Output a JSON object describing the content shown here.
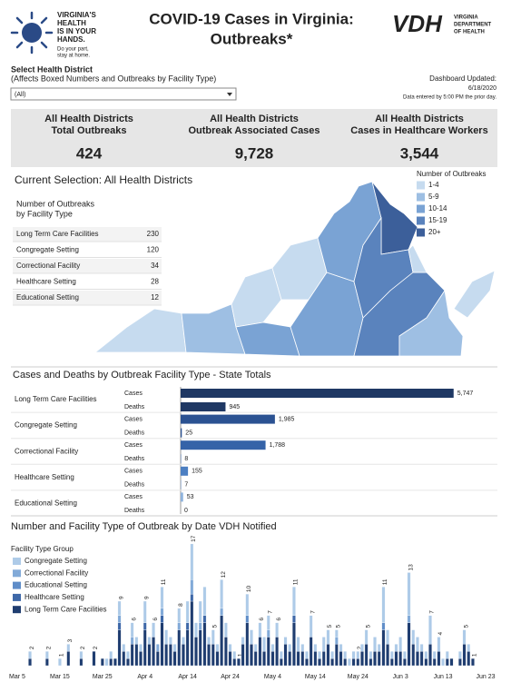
{
  "header": {
    "logo_lines": [
      "VIRGINIA'S",
      "HEALTH",
      "IS IN YOUR",
      "HANDS."
    ],
    "logo_tagline": [
      "Do your part,",
      "stay at home."
    ],
    "title": [
      "COVID-19 Cases in Virginia:",
      "Outbreaks*"
    ],
    "vdh_mark": "VDH",
    "vdh_lines": [
      "VIRGINIA",
      "DEPARTMENT",
      "OF HEALTH"
    ]
  },
  "filter": {
    "label": "Select Health District",
    "hint": "(Affects Boxed Numbers and Outbreaks by Facility Type)",
    "selected": "(All)"
  },
  "updated": {
    "label": "Dashboard Updated:",
    "date": "6/18/2020",
    "note": "Data entered by 5:00 PM the prior day."
  },
  "kpis": [
    {
      "title": [
        "All Health Districts",
        "Total Outbreaks"
      ],
      "value": "424"
    },
    {
      "title": [
        "All Health Districts",
        "Outbreak Associated Cases"
      ],
      "value": "9,728"
    },
    {
      "title": [
        "All Health Districts",
        "Cases in Healthcare Workers"
      ],
      "value": "3,544"
    }
  ],
  "selection": "Current Selection: All Health Districts",
  "outbreak_table": {
    "title": "Number of Outbreaks",
    "subtitle": "by Facility Type",
    "rows": [
      {
        "facility": "Long Term Care Facilities",
        "count": 230
      },
      {
        "facility": "Congregate Setting",
        "count": 120
      },
      {
        "facility": "Correctional Facility",
        "count": 34
      },
      {
        "facility": "Healthcare Setting",
        "count": 28
      },
      {
        "facility": "Educational Setting",
        "count": 12
      }
    ]
  },
  "map_legend": {
    "title": "Number of Outbreaks",
    "items": [
      {
        "label": "1-4",
        "color": "#c6dbef"
      },
      {
        "label": "5-9",
        "color": "#9ebfe3"
      },
      {
        "label": "10-14",
        "color": "#7aa3d4"
      },
      {
        "label": "15-19",
        "color": "#5a83bd"
      },
      {
        "label": "20+",
        "color": "#3c5f9a"
      }
    ]
  },
  "chart_data": [
    {
      "type": "hbar",
      "title": "Cases and Deaths by Outbreak Facility Type - State Totals",
      "categories": [
        "Long Term Care Facilities",
        "Congregate Setting",
        "Correctional Facility",
        "Healthcare Setting",
        "Educational Setting"
      ],
      "colors": [
        "#1f3864",
        "#2b5292",
        "#3563a8",
        "#4c7fc2",
        "#8fb3dd"
      ],
      "series": [
        {
          "name": "Cases",
          "values": [
            5747,
            1985,
            1788,
            155,
            53
          ],
          "value_labels": [
            "5,747",
            "1,985",
            "1,788",
            "155",
            "53"
          ]
        },
        {
          "name": "Deaths",
          "values": [
            945,
            25,
            8,
            7,
            0
          ]
        }
      ],
      "xlim": [
        0,
        6000
      ]
    },
    {
      "type": "stacked_bar",
      "title": "Number and Facility Type of Outbreak by Date VDH Notified",
      "legend_title": "Facility Type Group",
      "categories": [
        "Mar 5",
        null,
        null,
        null,
        null,
        null,
        null,
        null,
        null,
        null,
        "Mar 15",
        null,
        null,
        null,
        null,
        null,
        null,
        null,
        null,
        null,
        "Mar 25",
        null,
        null,
        null,
        null,
        null,
        null,
        null,
        null,
        null,
        "Apr 4",
        null,
        null,
        null,
        null,
        null,
        null,
        null,
        null,
        null,
        "Apr 14",
        null,
        null,
        null,
        null,
        null,
        null,
        null,
        null,
        null,
        "Apr 24",
        null,
        null,
        null,
        null,
        null,
        null,
        null,
        null,
        null,
        "May 4",
        null,
        null,
        null,
        null,
        null,
        null,
        null,
        null,
        null,
        "May 14",
        null,
        null,
        null,
        null,
        null,
        null,
        null,
        null,
        null,
        "May 24",
        null,
        null,
        null,
        null,
        null,
        null,
        null,
        null,
        null,
        "Jun 3",
        null,
        null,
        null,
        null,
        null,
        null,
        null,
        null,
        null,
        "Jun 13",
        null,
        null,
        null,
        null,
        null,
        null,
        null,
        null,
        null,
        "Jun 23"
      ],
      "series": [
        {
          "name": "Congregate Setting",
          "color": "#aecbe8",
          "values": [
            0,
            0,
            0,
            1,
            0,
            0,
            0,
            1,
            0,
            0,
            1,
            0,
            1,
            0,
            0,
            1,
            0,
            0,
            0,
            0,
            0,
            1,
            1,
            0,
            2,
            1,
            1,
            2,
            1,
            1,
            3,
            1,
            2,
            0,
            3,
            2,
            1,
            1,
            2,
            1,
            3,
            5,
            2,
            3,
            4,
            1,
            2,
            1,
            4,
            2,
            1,
            1,
            0,
            1,
            3,
            2,
            1,
            2,
            2,
            2,
            1,
            2,
            1,
            1,
            1,
            4,
            2,
            1,
            1,
            3,
            1,
            1,
            2,
            2,
            1,
            1,
            1,
            1,
            1,
            1,
            1,
            1,
            2,
            1,
            2,
            1,
            5,
            2,
            1,
            1,
            2,
            1,
            6,
            2,
            2,
            1,
            1,
            4,
            1,
            2,
            1,
            1,
            0,
            0,
            1,
            2,
            1,
            0,
            0,
            0,
            0
          ]
        },
        {
          "name": "Correctional Facility",
          "color": "#82aad8",
          "values": [
            0,
            0,
            0,
            0,
            0,
            0,
            0,
            0,
            0,
            0,
            0,
            0,
            0,
            0,
            0,
            0,
            0,
            0,
            0,
            0,
            0,
            0,
            0,
            0,
            1,
            0,
            0,
            1,
            0,
            0,
            0,
            0,
            0,
            1,
            1,
            0,
            0,
            0,
            1,
            0,
            0,
            2,
            0,
            1,
            0,
            0,
            0,
            0,
            1,
            0,
            0,
            0,
            0,
            0,
            0,
            0,
            0,
            0,
            0,
            1,
            0,
            0,
            0,
            0,
            0,
            0,
            0,
            0,
            0,
            0,
            0,
            0,
            0,
            0,
            0,
            1,
            0,
            0,
            0,
            0,
            0,
            0,
            0,
            0,
            0,
            0,
            0,
            0,
            0,
            0,
            0,
            0,
            1,
            0,
            0,
            0,
            0,
            0,
            0,
            0,
            0,
            0,
            0,
            0,
            0,
            0,
            0,
            0,
            0,
            0,
            0
          ]
        },
        {
          "name": "Educational Setting",
          "color": "#5f8dc8",
          "values": [
            0,
            0,
            0,
            0,
            0,
            0,
            0,
            0,
            0,
            0,
            0,
            0,
            0,
            0,
            0,
            0,
            0,
            0,
            0,
            0,
            0,
            0,
            0,
            0,
            0,
            0,
            0,
            0,
            0,
            0,
            0,
            0,
            0,
            0,
            0,
            0,
            0,
            0,
            0,
            0,
            0,
            0,
            0,
            0,
            0,
            0,
            0,
            0,
            0,
            0,
            0,
            0,
            0,
            0,
            1,
            0,
            0,
            0,
            0,
            0,
            0,
            0,
            0,
            0,
            0,
            0,
            0,
            0,
            0,
            0,
            0,
            0,
            0,
            0,
            0,
            0,
            0,
            0,
            0,
            0,
            0,
            0,
            0,
            0,
            0,
            0,
            1,
            0,
            0,
            0,
            0,
            0,
            0,
            0,
            0,
            0,
            0,
            0,
            0,
            0,
            0,
            0,
            0,
            0,
            0,
            0,
            0,
            0,
            0,
            0,
            0
          ]
        },
        {
          "name": "Healthcare Setting",
          "color": "#3e68a8",
          "values": [
            0,
            0,
            0,
            0,
            0,
            0,
            0,
            0,
            0,
            0,
            0,
            0,
            0,
            0,
            0,
            0,
            0,
            0,
            0,
            0,
            0,
            0,
            0,
            0,
            1,
            0,
            0,
            0,
            0,
            0,
            1,
            0,
            0,
            0,
            1,
            0,
            0,
            0,
            0,
            0,
            1,
            1,
            0,
            0,
            1,
            0,
            0,
            0,
            0,
            0,
            0,
            0,
            0,
            0,
            0,
            0,
            0,
            0,
            0,
            0,
            0,
            0,
            0,
            0,
            0,
            1,
            0,
            0,
            0,
            0,
            0,
            0,
            0,
            0,
            0,
            0,
            0,
            0,
            0,
            0,
            0,
            0,
            0,
            0,
            0,
            0,
            0,
            0,
            0,
            0,
            0,
            0,
            0,
            0,
            0,
            0,
            0,
            0,
            0,
            0,
            0,
            0,
            0,
            0,
            0,
            0,
            0,
            0,
            0,
            0,
            0
          ]
        },
        {
          "name": "Long Term Care Facilities",
          "color": "#1f3d70",
          "values": [
            0,
            0,
            0,
            1,
            0,
            0,
            0,
            1,
            0,
            0,
            0,
            0,
            2,
            0,
            0,
            1,
            0,
            0,
            2,
            0,
            1,
            0,
            1,
            1,
            5,
            2,
            1,
            3,
            3,
            2,
            5,
            3,
            4,
            2,
            6,
            3,
            3,
            2,
            5,
            3,
            5,
            9,
            4,
            5,
            6,
            3,
            3,
            2,
            7,
            4,
            2,
            1,
            1,
            3,
            6,
            3,
            2,
            4,
            2,
            4,
            2,
            4,
            1,
            3,
            2,
            6,
            2,
            2,
            1,
            4,
            2,
            1,
            2,
            3,
            1,
            3,
            2,
            1,
            0,
            1,
            1,
            2,
            3,
            1,
            2,
            2,
            5,
            3,
            1,
            2,
            2,
            1,
            6,
            3,
            2,
            2,
            1,
            3,
            1,
            2,
            0,
            1,
            1,
            0,
            1,
            3,
            2,
            1,
            0,
            0,
            0
          ]
        }
      ],
      "totals": [
        null,
        null,
        null,
        2,
        null,
        null,
        null,
        2,
        null,
        null,
        1,
        null,
        3,
        null,
        null,
        2,
        null,
        null,
        2,
        null,
        null,
        null,
        null,
        null,
        9,
        null,
        null,
        6,
        null,
        null,
        9,
        null,
        6,
        null,
        11,
        null,
        null,
        null,
        8,
        null,
        null,
        17,
        null,
        null,
        null,
        null,
        5,
        null,
        12,
        null,
        null,
        null,
        1,
        null,
        10,
        null,
        null,
        6,
        null,
        7,
        null,
        6,
        null,
        null,
        null,
        11,
        null,
        null,
        null,
        7,
        null,
        null,
        null,
        5,
        null,
        5,
        null,
        null,
        null,
        null,
        2,
        null,
        5,
        null,
        null,
        null,
        11,
        null,
        null,
        null,
        null,
        null,
        13,
        null,
        null,
        null,
        null,
        7,
        null,
        4,
        null,
        null,
        null,
        null,
        null,
        5,
        null,
        1,
        null,
        null,
        null
      ],
      "ylim": [
        0,
        18
      ]
    }
  ]
}
